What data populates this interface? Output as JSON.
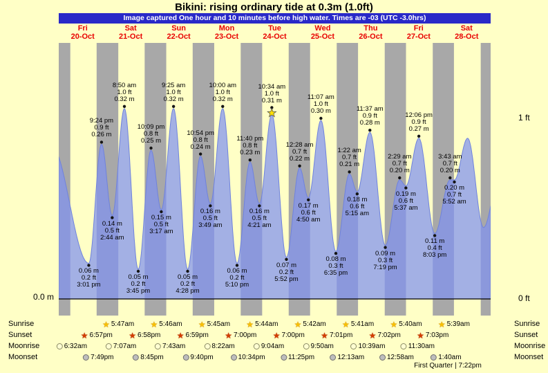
{
  "title": "Bikini: rising ordinary tide at 0.3m (1.0ft)",
  "banner": "Image captured One hour and 10 minutes before high water. Times are -03 (UTC -3.0hrs)",
  "days": [
    {
      "dow": "Fri",
      "date": "20-Oct"
    },
    {
      "dow": "Sat",
      "date": "21-Oct"
    },
    {
      "dow": "Sun",
      "date": "22-Oct"
    },
    {
      "dow": "Mon",
      "date": "23-Oct"
    },
    {
      "dow": "Tue",
      "date": "24-Oct"
    },
    {
      "dow": "Wed",
      "date": "25-Oct"
    },
    {
      "dow": "Thu",
      "date": "26-Oct"
    },
    {
      "dow": "Fri",
      "date": "27-Oct"
    },
    {
      "dow": "Sat",
      "date": "28-Oct"
    }
  ],
  "axis": {
    "left_zero": "0.0 m",
    "right_one_ft": "1 ft",
    "right_zero_ft": "0 ft"
  },
  "colors": {
    "page_bg": "#ffffc6",
    "night_band": "#a8a8a8",
    "tide_fill": "rgba(128,146,240,0.72)",
    "tide_edge": "#6f82dd",
    "banner_bg": "#2929c8",
    "date_red": "#e80000",
    "star_yellow": "#ffe000"
  },
  "chart_data": {
    "type": "area",
    "units": [
      "m",
      "ft"
    ],
    "y_axis": {
      "min_m": 0,
      "one_ft_m": 0.3048
    },
    "extremes": [
      {
        "type": "low",
        "day": 0,
        "time": "3:01 pm",
        "ft": "0.2 ft",
        "m": "0.06 m",
        "m_val": 0.06
      },
      {
        "type": "high",
        "day": 0,
        "time": "9:24 pm",
        "ft": "0.9 ft",
        "m": "0.26 m",
        "m_val": 0.26
      },
      {
        "type": "low",
        "day": 1,
        "time": "2:44 am",
        "ft": "0.5 ft",
        "m": "0.14 m",
        "m_val": 0.14
      },
      {
        "type": "high",
        "day": 1,
        "time": "8:50 am",
        "ft": "1.0 ft",
        "m": "0.32 m",
        "m_val": 0.32
      },
      {
        "type": "low",
        "day": 1,
        "time": "3:45 pm",
        "ft": "0.2 ft",
        "m": "0.05 m",
        "m_val": 0.05
      },
      {
        "type": "high",
        "day": 1,
        "time": "10:09 pm",
        "ft": "0.8 ft",
        "m": "0.25 m",
        "m_val": 0.25
      },
      {
        "type": "low",
        "day": 2,
        "time": "3:17 am",
        "ft": "0.5 ft",
        "m": "0.15 m",
        "m_val": 0.15
      },
      {
        "type": "high",
        "day": 2,
        "time": "9:25 am",
        "ft": "1.0 ft",
        "m": "0.32 m",
        "m_val": 0.32
      },
      {
        "type": "low",
        "day": 2,
        "time": "4:28 pm",
        "ft": "0.2 ft",
        "m": "0.05 m",
        "m_val": 0.05
      },
      {
        "type": "high",
        "day": 2,
        "time": "10:54 pm",
        "ft": "0.8 ft",
        "m": "0.24 m",
        "m_val": 0.24
      },
      {
        "type": "low",
        "day": 3,
        "time": "3:49 am",
        "ft": "0.5 ft",
        "m": "0.16 m",
        "m_val": 0.16
      },
      {
        "type": "high",
        "day": 3,
        "time": "10:00 am",
        "ft": "1.0 ft",
        "m": "0.32 m",
        "m_val": 0.32
      },
      {
        "type": "low",
        "day": 3,
        "time": "5:10 pm",
        "ft": "0.2 ft",
        "m": "0.06 m",
        "m_val": 0.06
      },
      {
        "type": "high",
        "day": 3,
        "time": "11:40 pm",
        "ft": "0.8 ft",
        "m": "0.23 m",
        "m_val": 0.23
      },
      {
        "type": "low",
        "day": 4,
        "time": "4:21 am",
        "ft": "0.5 ft",
        "m": "0.16 m",
        "m_val": 0.16
      },
      {
        "type": "high",
        "day": 4,
        "time": "10:34 am",
        "ft": "1.0 ft",
        "m": "0.31 m",
        "m_val": 0.31,
        "star": true
      },
      {
        "type": "low",
        "day": 4,
        "time": "5:52 pm",
        "ft": "0.2 ft",
        "m": "0.07 m",
        "m_val": 0.07
      },
      {
        "type": "high",
        "day": 5,
        "time": "12:28 am",
        "ft": "0.7 ft",
        "m": "0.22 m",
        "m_val": 0.22
      },
      {
        "type": "low",
        "day": 5,
        "time": "4:50 am",
        "ft": "0.6 ft",
        "m": "0.17 m",
        "m_val": 0.17
      },
      {
        "type": "high",
        "day": 5,
        "time": "11:07 am",
        "ft": "1.0 ft",
        "m": "0.30 m",
        "m_val": 0.3
      },
      {
        "type": "low",
        "day": 5,
        "time": "6:35 pm",
        "ft": "0.3 ft",
        "m": "0.08 m",
        "m_val": 0.08
      },
      {
        "type": "high",
        "day": 6,
        "time": "1:22 am",
        "ft": "0.7 ft",
        "m": "0.21 m",
        "m_val": 0.21
      },
      {
        "type": "low",
        "day": 6,
        "time": "5:15 am",
        "ft": "0.6 ft",
        "m": "0.18 m",
        "m_val": 0.18
      },
      {
        "type": "high",
        "day": 6,
        "time": "11:37 am",
        "ft": "0.9 ft",
        "m": "0.28 m",
        "m_val": 0.28
      },
      {
        "type": "low",
        "day": 6,
        "time": "7:19 pm",
        "ft": "0.3 ft",
        "m": "0.09 m",
        "m_val": 0.09
      },
      {
        "type": "high",
        "day": 7,
        "time": "2:29 am",
        "ft": "0.7 ft",
        "m": "0.20 m",
        "m_val": 0.2
      },
      {
        "type": "low",
        "day": 7,
        "time": "5:37 am",
        "ft": "0.6 ft",
        "m": "0.19 m",
        "m_val": 0.19
      },
      {
        "type": "high",
        "day": 7,
        "time": "12:06 pm",
        "ft": "0.9 ft",
        "m": "0.27 m",
        "m_val": 0.27
      },
      {
        "type": "low",
        "day": 7,
        "time": "8:03 pm",
        "ft": "0.4 ft",
        "m": "0.11 m",
        "m_val": 0.11
      },
      {
        "type": "high",
        "day": 8,
        "time": "3:43 am",
        "ft": "0.7 ft",
        "m": "0.20 m",
        "m_val": 0.2
      },
      {
        "type": "low",
        "day": 8,
        "time": "5:52 am",
        "ft": "0.7 ft",
        "m": "0.20 m",
        "m_val": 0.2
      }
    ],
    "curve_padding": {
      "before": [
        {
          "day": -1,
          "hour": 20.0,
          "m_val": 0.26
        }
      ],
      "after": [
        {
          "day": 8,
          "hour": 12.5,
          "m_val": 0.27
        },
        {
          "day": 8,
          "hour": 20.45,
          "m_val": 0.12
        },
        {
          "day": 9,
          "hour": 4.0,
          "m_val": 0.2
        }
      ]
    },
    "night_edges": {
      "first_sunrise": "5:47am",
      "last_sunset": "7:03pm"
    }
  },
  "almanac": {
    "rows": [
      {
        "id": "sunrise",
        "label": "Sunrise",
        "entries": [
          {
            "day": 1,
            "time": "5:47am"
          },
          {
            "day": 2,
            "time": "5:46am"
          },
          {
            "day": 3,
            "time": "5:45am"
          },
          {
            "day": 4,
            "time": "5:44am"
          },
          {
            "day": 5,
            "time": "5:42am"
          },
          {
            "day": 6,
            "time": "5:41am"
          },
          {
            "day": 7,
            "time": "5:40am"
          },
          {
            "day": 8,
            "time": "5:39am"
          }
        ]
      },
      {
        "id": "sunset",
        "label": "Sunset",
        "entries": [
          {
            "day": 0,
            "time": "6:57pm"
          },
          {
            "day": 1,
            "time": "6:58pm"
          },
          {
            "day": 2,
            "time": "6:59pm"
          },
          {
            "day": 3,
            "time": "7:00pm"
          },
          {
            "day": 4,
            "time": "7:00pm"
          },
          {
            "day": 5,
            "time": "7:01pm"
          },
          {
            "day": 6,
            "time": "7:02pm"
          },
          {
            "day": 7,
            "time": "7:03pm"
          }
        ]
      },
      {
        "id": "moonrise",
        "label": "Moonrise",
        "entries": [
          {
            "day": 0,
            "time": "6:32am"
          },
          {
            "day": 1,
            "time": "7:07am"
          },
          {
            "day": 2,
            "time": "7:43am"
          },
          {
            "day": 3,
            "time": "8:22am"
          },
          {
            "day": 4,
            "time": "9:04am"
          },
          {
            "day": 5,
            "time": "9:50am"
          },
          {
            "day": 6,
            "time": "10:39am"
          },
          {
            "day": 7,
            "time": "11:30am"
          }
        ]
      },
      {
        "id": "moonset",
        "label": "Moonset",
        "entries": [
          {
            "day": 0,
            "time": "7:49pm"
          },
          {
            "day": 1,
            "time": "8:45pm"
          },
          {
            "day": 2,
            "time": "9:40pm"
          },
          {
            "day": 3,
            "time": "10:34pm"
          },
          {
            "day": 4,
            "time": "11:25pm"
          },
          {
            "day": 6,
            "time": "12:13am"
          },
          {
            "day": 7,
            "time": "12:58am"
          },
          {
            "day": 8,
            "time": "1:40am"
          }
        ]
      }
    ],
    "footer": "First Quarter | 7:22pm"
  }
}
